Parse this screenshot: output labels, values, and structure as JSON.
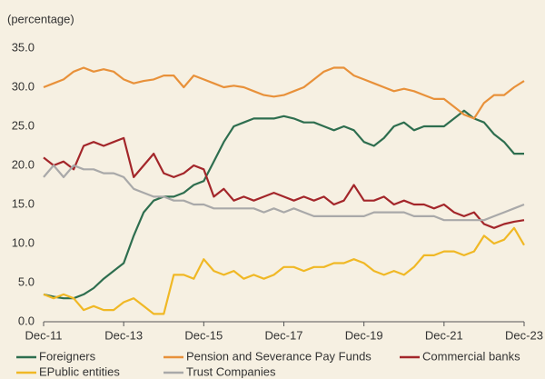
{
  "chart_data": {
    "type": "line",
    "title": "(percentage)",
    "x": [
      "2011-12",
      "2012-03",
      "2012-06",
      "2012-09",
      "2012-12",
      "2013-03",
      "2013-06",
      "2013-09",
      "2013-12",
      "2014-03",
      "2014-06",
      "2014-09",
      "2014-12",
      "2015-03",
      "2015-06",
      "2015-09",
      "2015-12",
      "2016-03",
      "2016-06",
      "2016-09",
      "2016-12",
      "2017-03",
      "2017-06",
      "2017-09",
      "2017-12",
      "2018-03",
      "2018-06",
      "2018-09",
      "2018-12",
      "2019-03",
      "2019-06",
      "2019-09",
      "2019-12",
      "2020-03",
      "2020-06",
      "2020-09",
      "2020-12",
      "2021-03",
      "2021-06",
      "2021-09",
      "2021-12",
      "2022-03",
      "2022-06",
      "2022-09",
      "2022-12",
      "2023-03",
      "2023-06",
      "2023-09",
      "2023-12"
    ],
    "series": [
      {
        "name": "Foreigners",
        "color": "#2e6e4f",
        "values": [
          3.5,
          3.2,
          3.0,
          3.0,
          3.5,
          4.3,
          5.5,
          6.5,
          7.5,
          11,
          14,
          15.5,
          16,
          16,
          16.5,
          17.5,
          18,
          20.5,
          23,
          25,
          25.5,
          26,
          26,
          26,
          26.3,
          26,
          25.5,
          25.5,
          25,
          24.5,
          25,
          24.5,
          23,
          22.5,
          23.5,
          25,
          25.5,
          24.5,
          25,
          25,
          25,
          26,
          27,
          26,
          25.5,
          24,
          23,
          21.5,
          21.5
        ]
      },
      {
        "name": "Pension and Severance Pay Funds",
        "color": "#e8913a",
        "values": [
          30,
          30.5,
          31,
          32,
          32.5,
          32,
          32.3,
          32,
          31,
          30.5,
          30.8,
          31,
          31.5,
          31.5,
          30,
          31.5,
          31,
          30.5,
          30,
          30.2,
          30,
          29.5,
          29,
          28.8,
          29,
          29.5,
          30,
          31,
          32,
          32.5,
          32.5,
          31.5,
          31,
          30.5,
          30,
          29.5,
          29.8,
          29.5,
          29,
          28.5,
          28.5,
          27.5,
          26.5,
          26,
          28,
          29,
          29,
          30,
          30.8
        ]
      },
      {
        "name": "Commercial banks",
        "color": "#a3262a",
        "values": [
          21,
          20,
          20.5,
          19.5,
          22.5,
          23,
          22.5,
          23,
          23.5,
          18.5,
          20,
          21.5,
          19,
          18.5,
          19,
          20,
          19.5,
          16,
          17,
          15.5,
          16,
          15.5,
          16,
          16.5,
          16,
          15.5,
          16,
          15.5,
          16,
          15,
          15.5,
          17.5,
          15.5,
          15.5,
          16,
          15,
          15.5,
          15,
          15,
          14.5,
          15,
          14,
          13.5,
          14,
          12.5,
          12,
          12.5,
          12.8,
          13
        ]
      },
      {
        "name": "EPublic entities",
        "color": "#f0b825",
        "values": [
          3.5,
          3,
          3.5,
          3,
          1.5,
          2,
          1.5,
          1.5,
          2.5,
          3,
          2,
          1,
          1,
          6,
          6,
          5.5,
          8,
          6.5,
          6,
          6.5,
          5.5,
          6,
          5.5,
          6,
          7,
          7,
          6.5,
          7,
          7,
          7.5,
          7.5,
          8,
          7.5,
          6.5,
          6,
          6.5,
          6,
          7,
          8.5,
          8.5,
          9,
          9,
          8.5,
          9,
          11,
          10,
          10.5,
          12,
          9.8
        ]
      },
      {
        "name": "Trust Companies",
        "color": "#a9a9a9",
        "values": [
          18.5,
          20,
          18.5,
          20,
          19.5,
          19.5,
          19,
          19,
          18.5,
          17,
          16.5,
          16,
          16,
          15.5,
          15.5,
          15,
          15,
          14.5,
          14.5,
          14.5,
          14.5,
          14.5,
          14,
          14.5,
          14,
          14.5,
          14,
          13.5,
          13.5,
          13.5,
          13.5,
          13.5,
          13.5,
          14,
          14,
          14,
          14,
          13.5,
          13.5,
          13.5,
          13,
          13,
          13,
          13,
          13,
          13.5,
          14,
          14.5,
          15
        ]
      }
    ],
    "xlim": [
      "2011-12",
      "2023-12"
    ],
    "xticks": [
      {
        "value": "2011-12",
        "label": "Dec-11"
      },
      {
        "value": "2013-12",
        "label": "Dec-13"
      },
      {
        "value": "2015-12",
        "label": "Dec-15"
      },
      {
        "value": "2017-12",
        "label": "Dec-17"
      },
      {
        "value": "2019-12",
        "label": "Dec-19"
      },
      {
        "value": "2021-12",
        "label": "Dec-21"
      },
      {
        "value": "2023-12",
        "label": "Dec-23"
      }
    ],
    "ylim": [
      0,
      35
    ],
    "yticks": [
      {
        "value": 0,
        "label": "0.0"
      },
      {
        "value": 5,
        "label": "5.0"
      },
      {
        "value": 10,
        "label": "10.0"
      },
      {
        "value": 15,
        "label": "15.0"
      },
      {
        "value": 20,
        "label": "20.0"
      },
      {
        "value": 25,
        "label": "25.0"
      },
      {
        "value": 30,
        "label": "30.0"
      },
      {
        "value": 35,
        "label": "35.0"
      }
    ],
    "grid": false,
    "legend": "bottom"
  }
}
